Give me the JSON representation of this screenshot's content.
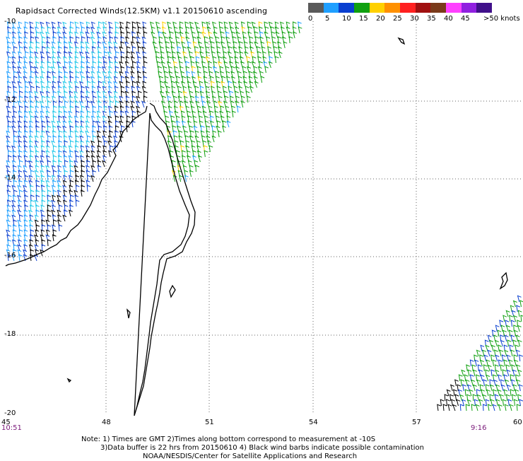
{
  "title": "Rapidsact Corrected Winds(12.5KM) v1.1 20150610 ascending",
  "scale": {
    "colors": [
      "#5a5a5a",
      "#1f9fff",
      "#0a3fd0",
      "#10a010",
      "#ffd000",
      "#ff9000",
      "#ff2020",
      "#a01010",
      "#7a3a1a",
      "#ff40ff",
      "#9020e0",
      "#40108a"
    ],
    "labels": [
      "0",
      "5",
      "10",
      "15",
      "20",
      "25",
      "30",
      "35",
      "40",
      "45",
      ">50 knots"
    ]
  },
  "axes": {
    "lat_labels": [
      "-10",
      "-12",
      "-14",
      "-16",
      "-18",
      "-20"
    ],
    "lon_labels": [
      "45",
      "48",
      "51",
      "54",
      "57",
      "60"
    ]
  },
  "times": {
    "left": "10:51",
    "right": "9:16"
  },
  "notes": [
    "Note: 1) Times are GMT 2)Times along bottom correspond to measurement at -10S",
    "3)Data buffer is 22 hrs from 20150610 4) Black wind barbs indicate possible contamination",
    "NOAA/NESDIS/Center for Satellite Applications and Research"
  ]
}
